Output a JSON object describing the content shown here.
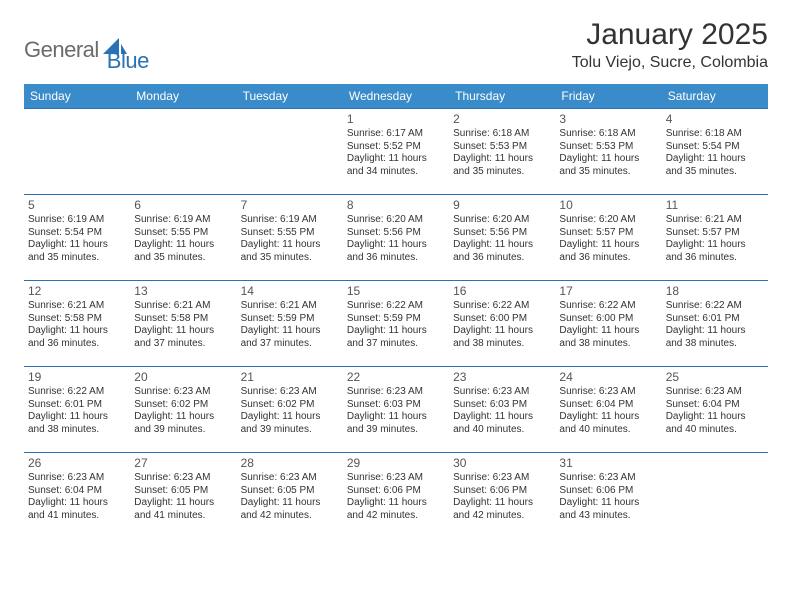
{
  "brand": {
    "part1": "General",
    "part2": "Blue"
  },
  "title": "January 2025",
  "location": "Tolu Viejo, Sucre, Colombia",
  "colors": {
    "header_bg": "#3a8bc9",
    "rule": "#2a72b5",
    "brand_gray": "#6b6b6b",
    "brand_blue": "#2a72b5",
    "text": "#333333",
    "page_bg": "#ffffff"
  },
  "dow": [
    "Sunday",
    "Monday",
    "Tuesday",
    "Wednesday",
    "Thursday",
    "Friday",
    "Saturday"
  ],
  "weeks": [
    [
      null,
      null,
      null,
      {
        "d": "1",
        "sr": "6:17 AM",
        "ss": "5:52 PM",
        "dl": "11 hours and 34 minutes."
      },
      {
        "d": "2",
        "sr": "6:18 AM",
        "ss": "5:53 PM",
        "dl": "11 hours and 35 minutes."
      },
      {
        "d": "3",
        "sr": "6:18 AM",
        "ss": "5:53 PM",
        "dl": "11 hours and 35 minutes."
      },
      {
        "d": "4",
        "sr": "6:18 AM",
        "ss": "5:54 PM",
        "dl": "11 hours and 35 minutes."
      }
    ],
    [
      {
        "d": "5",
        "sr": "6:19 AM",
        "ss": "5:54 PM",
        "dl": "11 hours and 35 minutes."
      },
      {
        "d": "6",
        "sr": "6:19 AM",
        "ss": "5:55 PM",
        "dl": "11 hours and 35 minutes."
      },
      {
        "d": "7",
        "sr": "6:19 AM",
        "ss": "5:55 PM",
        "dl": "11 hours and 35 minutes."
      },
      {
        "d": "8",
        "sr": "6:20 AM",
        "ss": "5:56 PM",
        "dl": "11 hours and 36 minutes."
      },
      {
        "d": "9",
        "sr": "6:20 AM",
        "ss": "5:56 PM",
        "dl": "11 hours and 36 minutes."
      },
      {
        "d": "10",
        "sr": "6:20 AM",
        "ss": "5:57 PM",
        "dl": "11 hours and 36 minutes."
      },
      {
        "d": "11",
        "sr": "6:21 AM",
        "ss": "5:57 PM",
        "dl": "11 hours and 36 minutes."
      }
    ],
    [
      {
        "d": "12",
        "sr": "6:21 AM",
        "ss": "5:58 PM",
        "dl": "11 hours and 36 minutes."
      },
      {
        "d": "13",
        "sr": "6:21 AM",
        "ss": "5:58 PM",
        "dl": "11 hours and 37 minutes."
      },
      {
        "d": "14",
        "sr": "6:21 AM",
        "ss": "5:59 PM",
        "dl": "11 hours and 37 minutes."
      },
      {
        "d": "15",
        "sr": "6:22 AM",
        "ss": "5:59 PM",
        "dl": "11 hours and 37 minutes."
      },
      {
        "d": "16",
        "sr": "6:22 AM",
        "ss": "6:00 PM",
        "dl": "11 hours and 38 minutes."
      },
      {
        "d": "17",
        "sr": "6:22 AM",
        "ss": "6:00 PM",
        "dl": "11 hours and 38 minutes."
      },
      {
        "d": "18",
        "sr": "6:22 AM",
        "ss": "6:01 PM",
        "dl": "11 hours and 38 minutes."
      }
    ],
    [
      {
        "d": "19",
        "sr": "6:22 AM",
        "ss": "6:01 PM",
        "dl": "11 hours and 38 minutes."
      },
      {
        "d": "20",
        "sr": "6:23 AM",
        "ss": "6:02 PM",
        "dl": "11 hours and 39 minutes."
      },
      {
        "d": "21",
        "sr": "6:23 AM",
        "ss": "6:02 PM",
        "dl": "11 hours and 39 minutes."
      },
      {
        "d": "22",
        "sr": "6:23 AM",
        "ss": "6:03 PM",
        "dl": "11 hours and 39 minutes."
      },
      {
        "d": "23",
        "sr": "6:23 AM",
        "ss": "6:03 PM",
        "dl": "11 hours and 40 minutes."
      },
      {
        "d": "24",
        "sr": "6:23 AM",
        "ss": "6:04 PM",
        "dl": "11 hours and 40 minutes."
      },
      {
        "d": "25",
        "sr": "6:23 AM",
        "ss": "6:04 PM",
        "dl": "11 hours and 40 minutes."
      }
    ],
    [
      {
        "d": "26",
        "sr": "6:23 AM",
        "ss": "6:04 PM",
        "dl": "11 hours and 41 minutes."
      },
      {
        "d": "27",
        "sr": "6:23 AM",
        "ss": "6:05 PM",
        "dl": "11 hours and 41 minutes."
      },
      {
        "d": "28",
        "sr": "6:23 AM",
        "ss": "6:05 PM",
        "dl": "11 hours and 42 minutes."
      },
      {
        "d": "29",
        "sr": "6:23 AM",
        "ss": "6:06 PM",
        "dl": "11 hours and 42 minutes."
      },
      {
        "d": "30",
        "sr": "6:23 AM",
        "ss": "6:06 PM",
        "dl": "11 hours and 42 minutes."
      },
      {
        "d": "31",
        "sr": "6:23 AM",
        "ss": "6:06 PM",
        "dl": "11 hours and 43 minutes."
      },
      null
    ]
  ],
  "labels": {
    "sunrise": "Sunrise:",
    "sunset": "Sunset:",
    "daylight": "Daylight:"
  }
}
